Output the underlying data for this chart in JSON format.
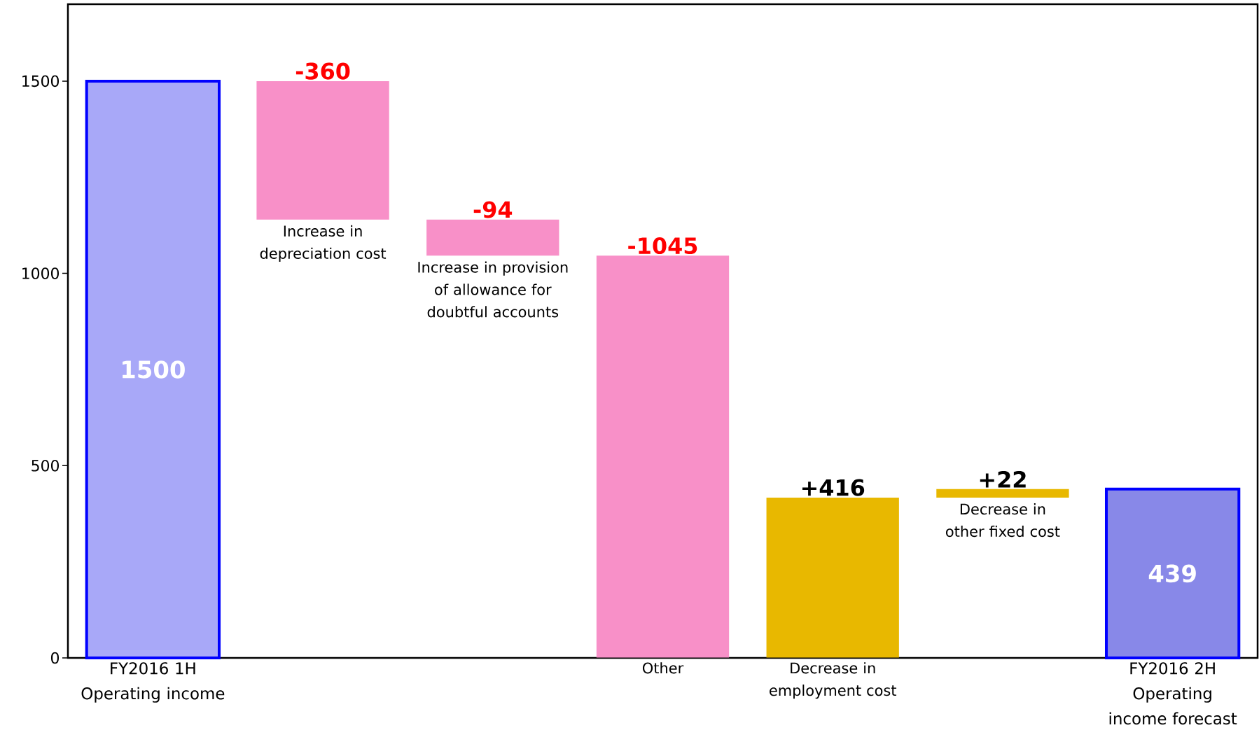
{
  "chart_data": {
    "type": "bar",
    "categories": [
      "FY2016 1H Operating income",
      "Increase in depreciation cost",
      "Increase in provision of allowance for doubtful accounts",
      "Other",
      "Decrease in employment cost",
      "Decrease in other fixed cost",
      "FY2016 2H Operating income forecast"
    ],
    "values": [
      1500,
      -360,
      -94,
      -1045,
      416,
      22,
      439
    ],
    "base": [
      0,
      1500,
      1140,
      1046,
      1,
      417,
      0
    ],
    "value_labels": [
      "1500",
      "-360",
      "-94",
      "-1045",
      "+416",
      "+22",
      "439"
    ],
    "colors": [
      "#a8a8f8",
      "#f890c8",
      "#f890c8",
      "#f890c8",
      "#e8b800",
      "#e8b800",
      "#8888e8"
    ],
    "ylim": [
      0,
      1700
    ],
    "yticks": [
      0,
      500,
      1000,
      1500
    ]
  }
}
